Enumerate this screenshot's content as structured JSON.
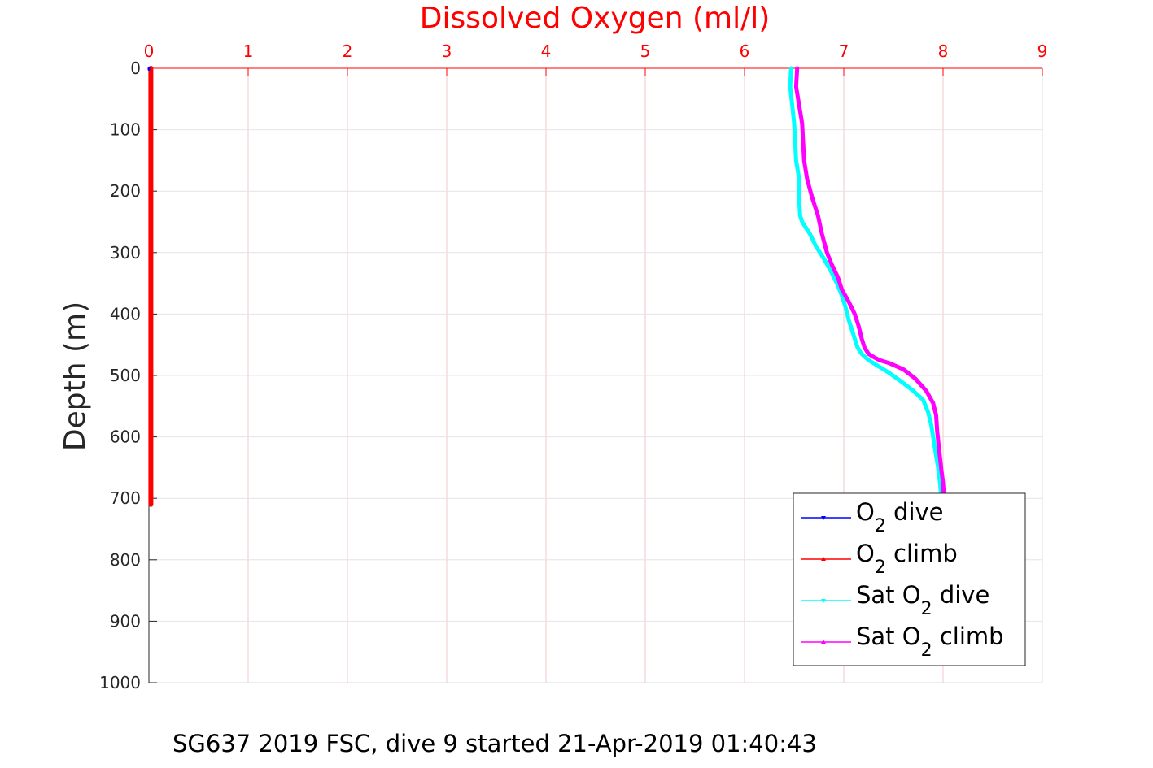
{
  "chart_data": {
    "type": "line",
    "title": "Dissolved Oxygen (ml/l)",
    "xlabel": "Dissolved Oxygen (ml/l)",
    "ylabel": "Depth (m)",
    "xlim": [
      0,
      9
    ],
    "ylim": [
      0,
      1000
    ],
    "y_reversed": true,
    "x_axis_position": "top",
    "x_ticks": [
      "0",
      "1",
      "2",
      "3",
      "4",
      "5",
      "6",
      "7",
      "8",
      "9"
    ],
    "y_ticks": [
      "0",
      "100",
      "200",
      "300",
      "400",
      "500",
      "600",
      "700",
      "800",
      "900",
      "1000"
    ],
    "grid": true,
    "legend_position": "bottom-right",
    "colors": {
      "title": "#ff0000",
      "xaxis": "#ff0000",
      "yaxis": "#262626"
    },
    "series": [
      {
        "name": "O2 dive",
        "legend": {
          "main": "O",
          "sub": "2",
          "rest": " dive"
        },
        "color": "#0000ff",
        "marker": "down-triangle",
        "x": [
          0.0,
          0.0
        ],
        "y": [
          0,
          2
        ]
      },
      {
        "name": "O2 climb",
        "legend": {
          "main": "O",
          "sub": "2",
          "rest": " climb"
        },
        "color": "#ff0000",
        "marker": "up-triangle",
        "x": [
          0.02,
          0.02,
          0.02
        ],
        "y": [
          0,
          350,
          710
        ]
      },
      {
        "name": "Sat O2 dive",
        "legend": {
          "main": "Sat O",
          "sub": "2",
          "rest": " dive"
        },
        "color": "#00ffff",
        "marker": "down-triangle",
        "x": [
          6.47,
          6.46,
          6.48,
          6.5,
          6.51,
          6.52,
          6.55,
          6.55,
          6.56,
          6.58,
          6.66,
          6.72,
          6.8,
          6.87,
          6.93,
          6.98,
          7.02,
          7.05,
          7.08,
          7.11,
          7.14,
          7.18,
          7.25,
          7.35,
          7.45,
          7.58,
          7.7,
          7.8,
          7.85,
          7.88,
          7.9,
          7.92,
          7.95,
          7.97,
          7.98
        ],
        "y": [
          0,
          30,
          60,
          90,
          120,
          150,
          180,
          210,
          240,
          250,
          270,
          290,
          310,
          330,
          350,
          370,
          390,
          410,
          425,
          440,
          455,
          465,
          475,
          485,
          495,
          510,
          525,
          540,
          560,
          580,
          600,
          620,
          650,
          675,
          695
        ]
      },
      {
        "name": "Sat O2 climb",
        "legend": {
          "main": "Sat O",
          "sub": "2",
          "rest": " climb"
        },
        "color": "#ff00ff",
        "marker": "up-triangle",
        "x": [
          6.53,
          6.52,
          6.55,
          6.58,
          6.59,
          6.6,
          6.63,
          6.68,
          6.74,
          6.78,
          6.83,
          6.88,
          6.94,
          6.98,
          7.05,
          7.11,
          7.15,
          7.18,
          7.21,
          7.25,
          7.3,
          7.36,
          7.46,
          7.6,
          7.72,
          7.83,
          7.9,
          7.93,
          7.94,
          7.96,
          7.98,
          8.0,
          8.01
        ],
        "y": [
          0,
          30,
          60,
          90,
          120,
          150,
          180,
          210,
          240,
          270,
          300,
          320,
          340,
          360,
          380,
          400,
          420,
          440,
          455,
          465,
          470,
          475,
          480,
          490,
          505,
          525,
          545,
          565,
          590,
          620,
          650,
          675,
          700
        ]
      }
    ]
  },
  "caption": "SG637 2019 FSC, dive 9 started 21-Apr-2019 01:40:43"
}
